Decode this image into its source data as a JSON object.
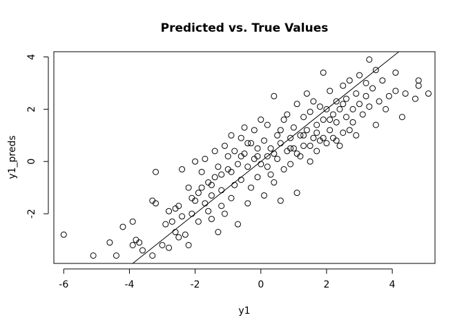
{
  "chart_data": {
    "type": "scatter",
    "title": "Predicted vs. True Values",
    "xlabel": "y1",
    "ylabel": "y1_preds",
    "xlim": [
      -6.3,
      5.3
    ],
    "ylim": [
      -3.9,
      4.2
    ],
    "x_ticks": [
      -6,
      -4,
      -2,
      0,
      2,
      4
    ],
    "y_ticks": [
      -2,
      0,
      2,
      4
    ],
    "grid": false,
    "legend": "none",
    "reference_line": {
      "slope": 1,
      "intercept": 0
    },
    "marker": "open-circle",
    "colors": {
      "points": "#000000",
      "line": "#000000",
      "axes": "#000000"
    },
    "points": [
      [
        -6.0,
        -2.8
      ],
      [
        -5.1,
        -3.6
      ],
      [
        -4.6,
        -3.1
      ],
      [
        -4.4,
        -3.6
      ],
      [
        -4.2,
        -2.5
      ],
      [
        -3.9,
        -2.3
      ],
      [
        -3.9,
        -3.2
      ],
      [
        -3.8,
        -3.0
      ],
      [
        -3.7,
        -3.1
      ],
      [
        -3.6,
        -3.4
      ],
      [
        -3.3,
        -3.6
      ],
      [
        -3.3,
        -1.5
      ],
      [
        -3.2,
        -1.6
      ],
      [
        -3.2,
        -0.4
      ],
      [
        -3.0,
        -3.2
      ],
      [
        -2.9,
        -2.4
      ],
      [
        -2.8,
        -3.3
      ],
      [
        -2.7,
        -2.3
      ],
      [
        -2.6,
        -1.8
      ],
      [
        -2.6,
        -2.7
      ],
      [
        -2.5,
        -2.9
      ],
      [
        -2.5,
        -1.7
      ],
      [
        -2.4,
        -0.3
      ],
      [
        -2.4,
        -2.1
      ],
      [
        -2.3,
        -2.8
      ],
      [
        -2.2,
        -1.0
      ],
      [
        -2.2,
        -3.2
      ],
      [
        -2.1,
        -2.0
      ],
      [
        -2.0,
        -1.5
      ],
      [
        -2.0,
        0.0
      ],
      [
        -1.9,
        -1.2
      ],
      [
        -1.9,
        -2.3
      ],
      [
        -1.8,
        -0.4
      ],
      [
        -1.8,
        -1.0
      ],
      [
        -1.7,
        0.1
      ],
      [
        -1.7,
        -1.6
      ],
      [
        -1.6,
        -1.9
      ],
      [
        -1.6,
        -0.8
      ],
      [
        -1.5,
        -2.2
      ],
      [
        -1.5,
        -1.3
      ],
      [
        -1.4,
        -0.6
      ],
      [
        -1.4,
        0.4
      ],
      [
        -1.3,
        -2.7
      ],
      [
        -1.3,
        -0.2
      ],
      [
        -1.2,
        -1.1
      ],
      [
        -1.2,
        -0.5
      ],
      [
        -1.1,
        0.6
      ],
      [
        -1.1,
        -2.0
      ],
      [
        -1.0,
        -0.3
      ],
      [
        -1.0,
        0.2
      ],
      [
        -0.9,
        -1.4
      ],
      [
        -0.9,
        1.0
      ],
      [
        -0.8,
        -0.9
      ],
      [
        -0.8,
        0.4
      ],
      [
        -0.7,
        -2.4
      ],
      [
        -0.7,
        -0.1
      ],
      [
        -0.6,
        0.9
      ],
      [
        -0.6,
        -0.7
      ],
      [
        -0.5,
        0.3
      ],
      [
        -0.5,
        1.3
      ],
      [
        -0.4,
        -1.6
      ],
      [
        -0.4,
        -0.2
      ],
      [
        -0.3,
        0.7
      ],
      [
        -0.3,
        -1.0
      ],
      [
        -0.2,
        0.1
      ],
      [
        -0.2,
        1.2
      ],
      [
        -0.1,
        -0.6
      ],
      [
        -0.1,
        0.5
      ],
      [
        0.0,
        1.6
      ],
      [
        0.0,
        -0.1
      ],
      [
        0.1,
        -1.3
      ],
      [
        0.1,
        0.8
      ],
      [
        0.2,
        0.2
      ],
      [
        0.2,
        1.4
      ],
      [
        0.3,
        -0.5
      ],
      [
        0.3,
        0.5
      ],
      [
        0.4,
        2.5
      ],
      [
        0.4,
        -0.8
      ],
      [
        0.5,
        1.0
      ],
      [
        0.5,
        0.1
      ],
      [
        0.6,
        -1.5
      ],
      [
        0.6,
        0.7
      ],
      [
        0.7,
        1.6
      ],
      [
        0.7,
        -0.3
      ],
      [
        0.8,
        0.4
      ],
      [
        0.8,
        1.8
      ],
      [
        0.9,
        0.9
      ],
      [
        0.9,
        -0.1
      ],
      [
        1.0,
        1.3
      ],
      [
        1.0,
        0.5
      ],
      [
        1.1,
        -1.2
      ],
      [
        1.1,
        2.2
      ],
      [
        1.2,
        1.0
      ],
      [
        1.2,
        0.2
      ],
      [
        1.3,
        1.7
      ],
      [
        1.3,
        0.6
      ],
      [
        1.4,
        2.6
      ],
      [
        1.4,
        1.2
      ],
      [
        1.5,
        0.0
      ],
      [
        1.5,
        1.9
      ],
      [
        1.6,
        0.9
      ],
      [
        1.6,
        2.3
      ],
      [
        1.7,
        1.4
      ],
      [
        1.7,
        0.4
      ],
      [
        1.8,
        2.1
      ],
      [
        1.8,
        0.8
      ],
      [
        1.9,
        3.4
      ],
      [
        1.9,
        1.6
      ],
      [
        2.0,
        2.0
      ],
      [
        2.0,
        0.7
      ],
      [
        2.1,
        1.2
      ],
      [
        2.1,
        2.7
      ],
      [
        2.2,
        1.8
      ],
      [
        2.2,
        0.9
      ],
      [
        2.3,
        2.3
      ],
      [
        2.3,
        1.5
      ],
      [
        2.4,
        0.6
      ],
      [
        2.4,
        2.0
      ],
      [
        2.5,
        1.1
      ],
      [
        2.5,
        2.9
      ],
      [
        2.6,
        1.7
      ],
      [
        2.6,
        2.4
      ],
      [
        2.7,
        1.2
      ],
      [
        2.7,
        3.1
      ],
      [
        2.8,
        2.0
      ],
      [
        2.8,
        1.5
      ],
      [
        2.9,
        2.6
      ],
      [
        2.9,
        1.0
      ],
      [
        3.0,
        2.2
      ],
      [
        3.0,
        3.3
      ],
      [
        3.1,
        1.8
      ],
      [
        3.2,
        2.5
      ],
      [
        3.2,
        3.0
      ],
      [
        3.3,
        3.9
      ],
      [
        3.3,
        2.1
      ],
      [
        3.4,
        2.8
      ],
      [
        3.5,
        1.4
      ],
      [
        3.5,
        3.5
      ],
      [
        3.6,
        2.3
      ],
      [
        3.7,
        3.1
      ],
      [
        3.8,
        2.0
      ],
      [
        3.9,
        2.5
      ],
      [
        4.1,
        3.4
      ],
      [
        4.1,
        2.7
      ],
      [
        4.3,
        1.7
      ],
      [
        4.4,
        2.6
      ],
      [
        4.7,
        2.4
      ],
      [
        4.8,
        2.9
      ],
      [
        4.8,
        3.1
      ],
      [
        5.1,
        2.6
      ],
      [
        -2.8,
        -1.9
      ],
      [
        -2.1,
        -1.4
      ],
      [
        -1.5,
        -0.9
      ],
      [
        -1.2,
        -1.7
      ],
      [
        -0.9,
        -0.4
      ],
      [
        -0.6,
        0.2
      ],
      [
        -0.4,
        0.7
      ],
      [
        -0.1,
        0.2
      ],
      [
        0.2,
        -0.2
      ],
      [
        0.4,
        0.3
      ],
      [
        0.6,
        1.2
      ],
      [
        0.9,
        0.5
      ],
      [
        1.1,
        0.3
      ],
      [
        1.3,
        1.0
      ],
      [
        1.5,
        0.6
      ],
      [
        1.7,
        1.1
      ],
      [
        1.9,
        0.9
      ],
      [
        2.1,
        1.6
      ],
      [
        2.3,
        0.8
      ],
      [
        2.5,
        2.2
      ]
    ]
  }
}
